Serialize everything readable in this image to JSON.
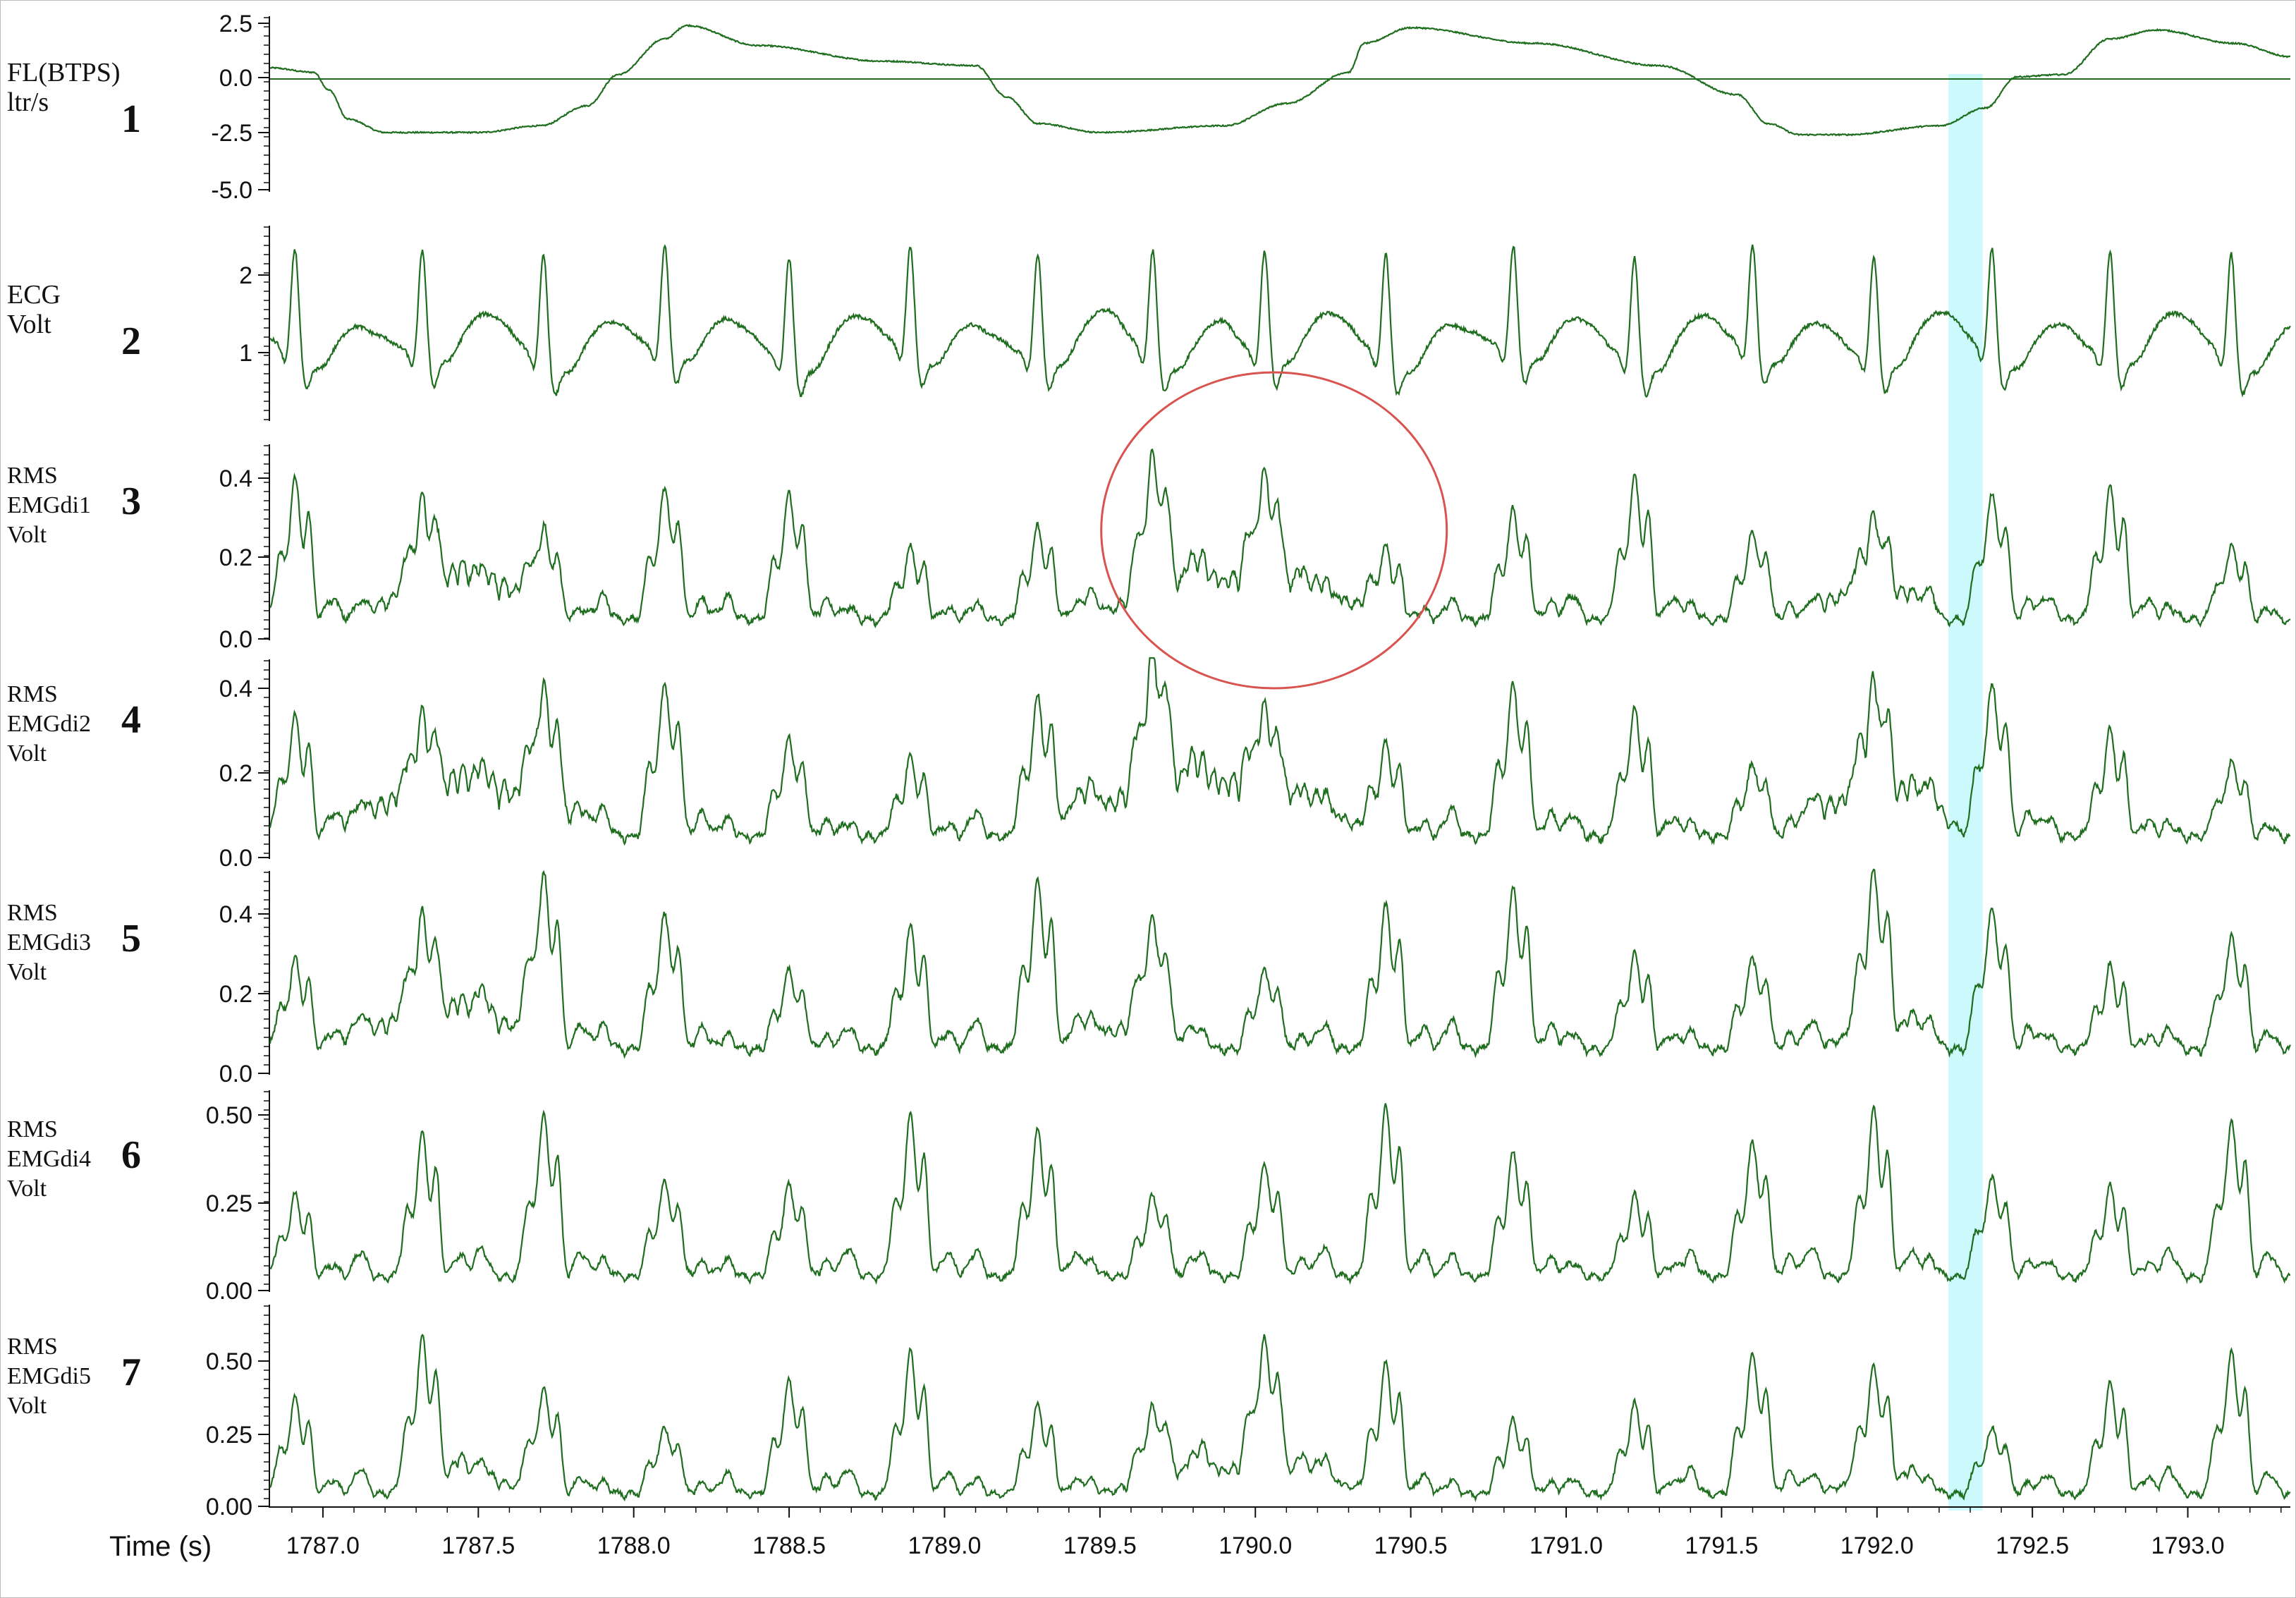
{
  "chart_data": {
    "type": "line",
    "xlabel": "Time (s)",
    "xlim": [
      1786.83,
      1793.33
    ],
    "xticks": [
      "1787.0",
      "1787.5",
      "1788.0",
      "1788.5",
      "1789.0",
      "1789.5",
      "1790.0",
      "1790.5",
      "1791.0",
      "1791.5",
      "1792.0",
      "1792.5",
      "1793.0"
    ],
    "highlight_band": {
      "x": [
        1792.23,
        1792.34
      ],
      "color": "#ccf9fb"
    },
    "annotation": {
      "shape": "circle",
      "center_x": 1790.06,
      "center_y_panel": 3,
      "color": "#d9534f"
    },
    "line_color": "#1f6e1f",
    "heart_beats": [
      1786.91,
      1787.32,
      1787.71,
      1788.1,
      1788.5,
      1788.89,
      1789.3,
      1789.67,
      1790.03,
      1790.42,
      1790.83,
      1791.22,
      1791.6,
      1791.99,
      1792.37,
      1792.75,
      1793.14
    ],
    "panels": [
      {
        "number": "1",
        "label_lines": [
          "FL(BTPS)",
          "ltr/s"
        ],
        "yticks": [
          "2.5",
          "0.0",
          "-2.5",
          "-5.0"
        ],
        "ylim": [
          -5.0,
          2.5
        ],
        "zero_line": true,
        "series": {
          "name": "FL(BTPS)",
          "kind": "flow",
          "x": [
            1786.83,
            1786.97,
            1787.02,
            1787.08,
            1787.2,
            1787.5,
            1787.7,
            1787.85,
            1787.95,
            1788.1,
            1788.17,
            1788.4,
            1788.8,
            1789.1,
            1789.2,
            1789.3,
            1789.5,
            1789.9,
            1790.1,
            1790.3,
            1790.35,
            1790.5,
            1790.9,
            1791.3,
            1791.55,
            1791.65,
            1791.75,
            1791.9,
            1792.2,
            1792.35,
            1792.45,
            1792.6,
            1792.75,
            1792.9,
            1793.15,
            1793.33
          ],
          "y": [
            0.5,
            0.3,
            -0.5,
            -1.8,
            -2.4,
            -2.4,
            -2.1,
            -1.2,
            0.2,
            1.8,
            2.4,
            1.5,
            0.8,
            0.6,
            -0.8,
            -2.0,
            -2.4,
            -2.1,
            -1.1,
            0.3,
            1.6,
            2.3,
            1.6,
            0.6,
            -0.7,
            -2.0,
            -2.5,
            -2.5,
            -2.1,
            -1.3,
            0.1,
            0.2,
            1.8,
            2.2,
            1.6,
            1.0
          ]
        }
      },
      {
        "number": "2",
        "label_lines": [
          "ECG",
          "Volt"
        ],
        "yticks": [
          "2",
          "1"
        ],
        "ylim": [
          0.2,
          2.55
        ],
        "zero_line": false,
        "series": {
          "name": "ECG",
          "kind": "ecg",
          "baseline": 1.1
        }
      },
      {
        "number": "3",
        "label_lines": [
          "RMS",
          "EMGdi1",
          "Volt"
        ],
        "yticks": [
          "0.4",
          "0.2",
          "0.0"
        ],
        "ylim": [
          0,
          0.48
        ],
        "zero_line": false,
        "series": {
          "name": "RMS EMGdi1",
          "kind": "emg",
          "peak": 0.32,
          "base": 0.03,
          "bursts": [
            [
              1787.1,
              1787.8,
              0.12
            ],
            [
              1789.45,
              1790.45,
              0.12
            ],
            [
              1791.75,
              1792.2,
              0.09
            ]
          ]
        }
      },
      {
        "number": "4",
        "label_lines": [
          "RMS",
          "EMGdi2",
          "Volt"
        ],
        "yticks": [
          "0.4",
          "0.2",
          "0.0"
        ],
        "ylim": [
          0,
          0.45
        ],
        "zero_line": false,
        "series": {
          "name": "RMS EMGdi2",
          "kind": "emg",
          "peak": 0.32,
          "base": 0.03,
          "bursts": [
            [
              1787.0,
              1787.9,
              0.14
            ],
            [
              1789.3,
              1790.4,
              0.15
            ],
            [
              1791.7,
              1792.3,
              0.12
            ]
          ]
        }
      },
      {
        "number": "5",
        "label_lines": [
          "RMS",
          "EMGdi3",
          "Volt"
        ],
        "yticks": [
          "0.4",
          "0.2",
          "0.0"
        ],
        "ylim": [
          0,
          0.48
        ],
        "zero_line": false,
        "series": {
          "name": "RMS EMGdi3",
          "kind": "emg",
          "peak": 0.36,
          "base": 0.04,
          "bursts": [
            [
              1787.0,
              1787.8,
              0.1
            ],
            [
              1789.4,
              1789.8,
              0.06
            ],
            [
              1791.8,
              1792.2,
              0.05
            ]
          ]
        }
      },
      {
        "number": "6",
        "label_lines": [
          "RMS",
          "EMGdi4",
          "Volt"
        ],
        "yticks": [
          "0.50",
          "0.25",
          "0.00"
        ],
        "ylim": [
          0,
          0.55
        ],
        "zero_line": false,
        "series": {
          "name": "RMS EMGdi4",
          "kind": "emg",
          "peak": 0.42,
          "base": 0.02,
          "bursts": []
        }
      },
      {
        "number": "7",
        "label_lines": [
          "RMS",
          "EMGdi5",
          "Volt"
        ],
        "yticks": [
          "0.50",
          "0.25",
          "0.00"
        ],
        "ylim": [
          0,
          0.62
        ],
        "zero_line": false,
        "series": {
          "name": "RMS EMGdi5",
          "kind": "emg",
          "peak": 0.4,
          "base": 0.02,
          "bursts": [
            [
              1787.2,
              1787.7,
              0.06
            ],
            [
              1789.5,
              1790.4,
              0.09
            ],
            [
              1791.8,
              1792.2,
              0.05
            ]
          ]
        }
      }
    ]
  }
}
